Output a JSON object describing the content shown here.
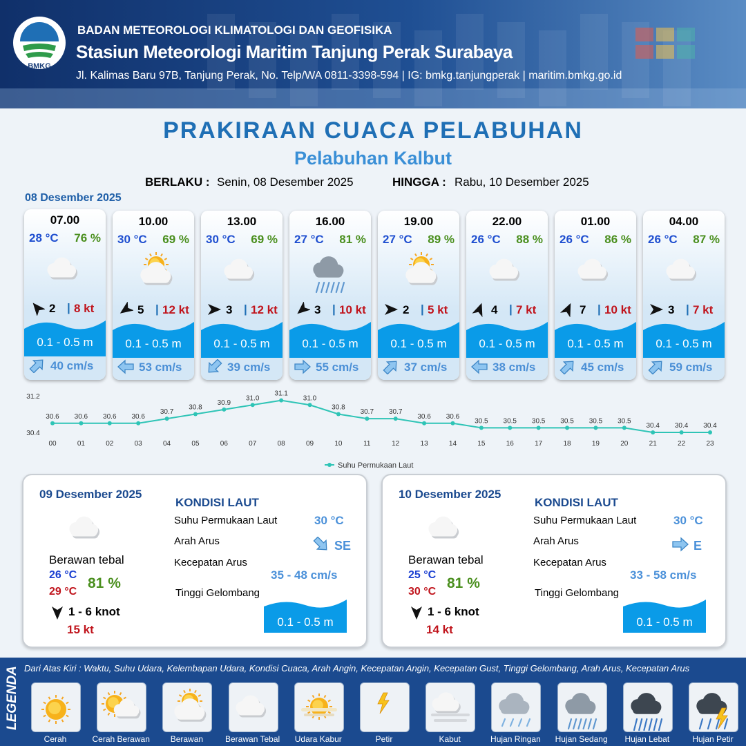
{
  "header": {
    "organization": "BADAN METEOROLOGI KLIMATOLOGI DAN GEOFISIKA",
    "station": "Stasiun Meteorologi Maritim Tanjung Perak Surabaya",
    "address": "Jl. Kalimas Baru 97B, Tanjung Perak, No. Telp/WA 0811-3398-594 | IG: bmkg.tanjungperak | maritim.bmkg.go.id",
    "logo_text": "BMKG"
  },
  "title": "PRAKIRAAN CUACA PELABUHAN",
  "subtitle": "Pelabuhan Kalbut",
  "validity": {
    "from_label": "BERLAKU :",
    "from": "Senin, 08 Desember 2025",
    "to_label": "HINGGA :",
    "to": "Rabu, 10 Desember 2025"
  },
  "today": {
    "date": "08 Desember 2025",
    "separator": "|",
    "forecasts": [
      {
        "time": "07.00",
        "temperature": "28 °C",
        "humidity": "76 %",
        "wind_speed": "2",
        "gust": "8 kt",
        "wave": "0.1 - 0.5 m",
        "current": "40 cm/s"
      },
      {
        "time": "10.00",
        "temperature": "30 °C",
        "humidity": "69 %",
        "wind_speed": "5",
        "gust": "12 kt",
        "wave": "0.1 - 0.5 m",
        "current": "53 cm/s"
      },
      {
        "time": "13.00",
        "temperature": "30 °C",
        "humidity": "69 %",
        "wind_speed": "3",
        "gust": "12 kt",
        "wave": "0.1 - 0.5 m",
        "current": "39 cm/s"
      },
      {
        "time": "16.00",
        "temperature": "27 °C",
        "humidity": "81 %",
        "wind_speed": "3",
        "gust": "10 kt",
        "wave": "0.1 - 0.5 m",
        "current": "55 cm/s"
      },
      {
        "time": "19.00",
        "temperature": "27 °C",
        "humidity": "89 %",
        "wind_speed": "2",
        "gust": "5 kt",
        "wave": "0.1 - 0.5 m",
        "current": "37 cm/s"
      },
      {
        "time": "22.00",
        "temperature": "26 °C",
        "humidity": "88 %",
        "wind_speed": "4",
        "gust": "7 kt",
        "wave": "0.1 - 0.5 m",
        "current": "38 cm/s"
      },
      {
        "time": "01.00",
        "temperature": "26 °C",
        "humidity": "86 %",
        "wind_speed": "7",
        "gust": "10 kt",
        "wave": "0.1 - 0.5 m",
        "current": "45 cm/s"
      },
      {
        "time": "04.00",
        "temperature": "26 °C",
        "humidity": "87 %",
        "wind_speed": "3",
        "gust": "7 kt",
        "wave": "0.1 - 0.5 m",
        "current": "59 cm/s"
      }
    ]
  },
  "chart_data": {
    "type": "line",
    "x": [
      "00",
      "01",
      "02",
      "03",
      "04",
      "05",
      "06",
      "07",
      "08",
      "09",
      "10",
      "11",
      "12",
      "13",
      "14",
      "15",
      "16",
      "17",
      "18",
      "19",
      "20",
      "21",
      "22",
      "23"
    ],
    "series": [
      {
        "name": "Suhu Permukaan Laut",
        "color": "#2ec4b6",
        "values": [
          30.6,
          30.6,
          30.6,
          30.6,
          30.7,
          30.8,
          30.9,
          31.0,
          31.1,
          31.0,
          30.8,
          30.7,
          30.7,
          30.6,
          30.6,
          30.5,
          30.5,
          30.5,
          30.5,
          30.5,
          30.5,
          30.4,
          30.4,
          30.4
        ],
        "value_labels": [
          "30.6",
          "30.6",
          "30.6",
          "30.6",
          "30.7",
          "30.8",
          "30.9",
          "31.0",
          "31.1",
          "31.0",
          "30.8",
          "30.7",
          "30.7",
          "30.6",
          "30.6",
          "30.5",
          "30.5",
          "30.5",
          "30.5",
          "30.5",
          "30.5",
          "30.4",
          "30.4",
          "30.4"
        ]
      }
    ],
    "ylim": [
      30.4,
      31.2
    ],
    "yticks": [
      30.4,
      31.2
    ]
  },
  "days": [
    {
      "date": "09 Desember 2025",
      "condition": "Berawan tebal",
      "temp_min": "26 °C",
      "temp_max": "29 °C",
      "humidity": "81 %",
      "wind": "1 - 6 knot",
      "gust": "15 kt",
      "sea": {
        "heading": "KONDISI LAUT",
        "sst_label": "Suhu Permukaan Laut",
        "sst": "30 °C",
        "current_dir_label": "Arah Arus",
        "current_dir": "SE",
        "current_speed_label": "Kecepatan Arus",
        "current_speed": "35 - 48 cm/s",
        "wave_label": "Tinggi Gelombang",
        "wave": "0.1 - 0.5 m"
      }
    },
    {
      "date": "10 Desember 2025",
      "condition": "Berawan tebal",
      "temp_min": "25 °C",
      "temp_max": "30 °C",
      "humidity": "81 %",
      "wind": "1 - 6 knot",
      "gust": "14 kt",
      "sea": {
        "heading": "KONDISI LAUT",
        "sst_label": "Suhu Permukaan Laut",
        "sst": "30 °C",
        "current_dir_label": "Arah Arus",
        "current_dir": "E",
        "current_speed_label": "Kecepatan Arus",
        "current_speed": "33 - 58 cm/s",
        "wave_label": "Tinggi Gelombang",
        "wave": "0.1 - 0.5 m"
      }
    }
  ],
  "legend": {
    "title": "LEGENDA",
    "note": "Dari Atas Kiri : Waktu, Suhu Udara, Kelembapan Udara, Kondisi Cuaca, Arah Angin, Kecepatan Angin, Kecepatan Gust, Tinggi Gelombang, Arah Arus, Kecepatan Arus",
    "items": [
      "Cerah",
      "Cerah Berawan",
      "Berawan",
      "Berawan Tebal",
      "Udara Kabur",
      "Petir",
      "Kabut",
      "Hujan Ringan",
      "Hujan Sedang",
      "Hujan Lebat",
      "Hujan Petir"
    ]
  }
}
